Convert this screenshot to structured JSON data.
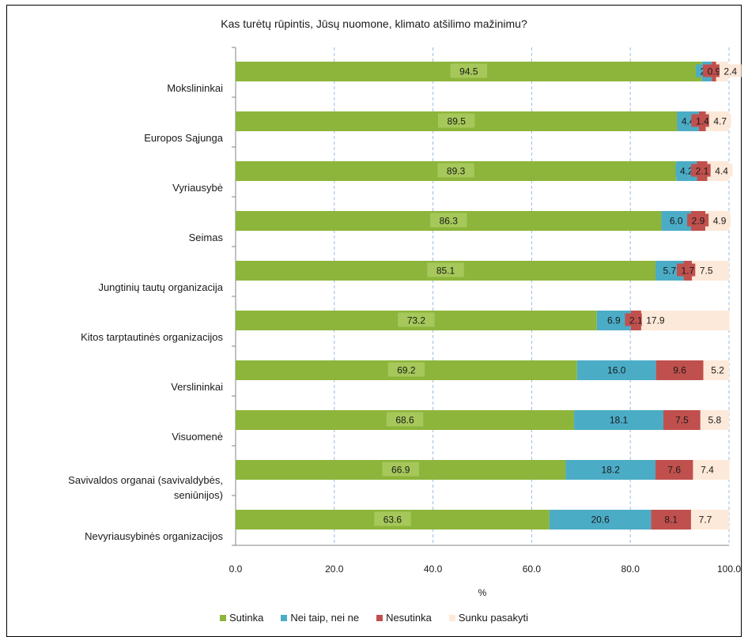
{
  "chart_data": {
    "type": "bar",
    "orientation": "horizontal",
    "stacked": true,
    "title": "Kas turėtų rūpintis, Jūsų nuomone, klimato atšilimo mažinimu?",
    "xlabel": "%",
    "ylabel": "",
    "xlim": [
      0,
      100
    ],
    "xticks": [
      "0.0",
      "20.0",
      "40.0",
      "60.0",
      "80.0",
      "100.0"
    ],
    "grid": "vertical dashed",
    "legend_position": "bottom",
    "categories": [
      "Mokslininkai",
      "Europos Sąjunga",
      "Vyriausybė",
      "Seimas",
      "Jungtinių tautų organizacija",
      "Kitos tarptautinės organizacijos",
      "Verslininkai",
      "Visuomenė",
      "Savivaldos organai (savivaldybės, seniūnijos)",
      "Nevyriausybinės organizacijos"
    ],
    "category_lines": [
      [
        "Mokslininkai"
      ],
      [
        "Europos Sąjunga"
      ],
      [
        "Vyriausybė"
      ],
      [
        "Seimas"
      ],
      [
        "Jungtinių tautų organizacija"
      ],
      [
        "Kitos tarptautinės organizacijos"
      ],
      [
        "Verslininkai"
      ],
      [
        "Visuomenė"
      ],
      [
        "Savivaldos organai (savivaldybės,",
        "seniūnijos)"
      ],
      [
        "Nevyriausybinės organizacijos"
      ]
    ],
    "series": [
      {
        "name": "Sutinka",
        "color": "#8db53c",
        "labelBg": "#8db53c",
        "values": [
          94.5,
          89.5,
          89.3,
          86.3,
          85.1,
          73.2,
          69.2,
          68.6,
          66.9,
          63.6
        ],
        "labels": [
          "94.5",
          "89.5",
          "89.3",
          "86.3",
          "85.1",
          "73.2",
          "69.2",
          "68.6",
          "66.9",
          "63.6"
        ]
      },
      {
        "name": "Nei taip, nei ne",
        "color": "#4bacc6",
        "labelBg": "#4bacc6",
        "values": [
          2.0,
          4.4,
          4.2,
          6.0,
          5.7,
          6.9,
          16.0,
          18.1,
          18.2,
          20.6
        ],
        "labels": [
          "2.0",
          "4.4",
          "4.2",
          "6.0",
          "5.7",
          "6.9",
          "16.0",
          "18.1",
          "18.2",
          "20.6"
        ]
      },
      {
        "name": "Nesutinka",
        "color": "#c0504d",
        "labelBg": "#c0504d",
        "values": [
          0.9,
          1.4,
          2.1,
          2.9,
          1.7,
          2.1,
          9.6,
          7.5,
          7.6,
          8.1
        ],
        "labels": [
          "0.9",
          "1.4",
          "2.1",
          "2.9",
          "1.7",
          "2.1",
          "9.6",
          "7.5",
          "7.6",
          "8.1"
        ]
      },
      {
        "name": "Sunku pasakyti",
        "color": "#fde9d9",
        "labelBg": "#fde9d9",
        "values": [
          2.4,
          4.7,
          4.4,
          4.9,
          7.5,
          17.9,
          5.2,
          5.8,
          7.4,
          7.7
        ],
        "labels": [
          "2.4",
          "4.7",
          "4.4",
          "4.9",
          "7.5",
          "17.9",
          "5.2",
          "5.8",
          "7.4",
          "7.7"
        ]
      }
    ]
  }
}
